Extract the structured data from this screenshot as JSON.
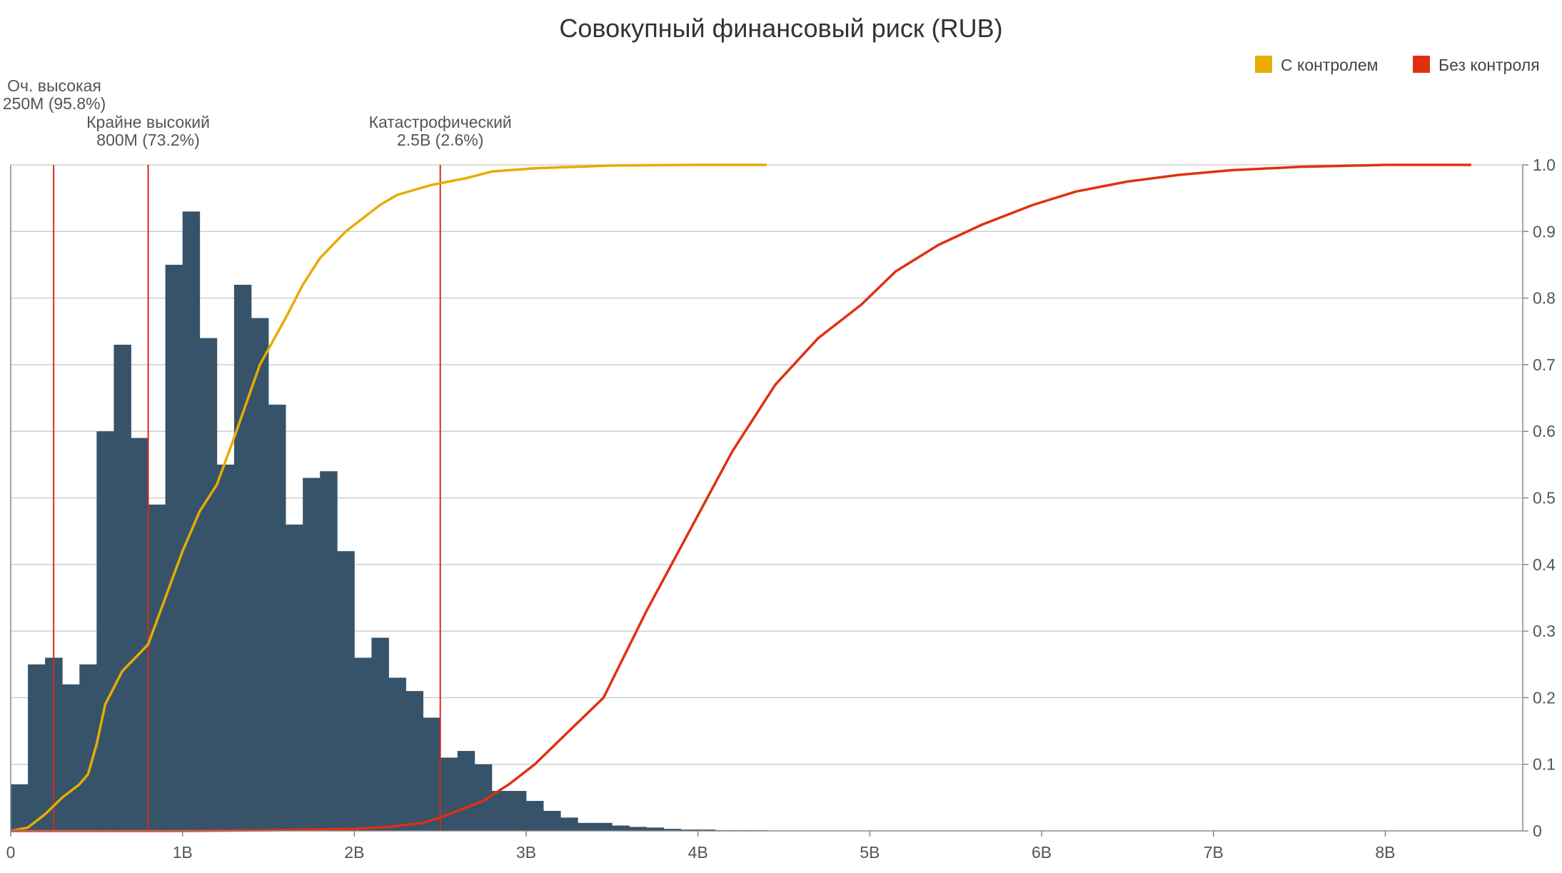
{
  "chart_data": {
    "type": "bar",
    "title": "Совокупный финансовый риск (RUB)",
    "xlabel": "",
    "ylabel": "",
    "grid": true,
    "legend_position": "top-right",
    "x_range": [
      0,
      8800000000
    ],
    "y2_range": [
      0,
      1.0
    ],
    "x_ticks": [
      {
        "value": 0,
        "label": "0"
      },
      {
        "value": 1000000000,
        "label": "1B"
      },
      {
        "value": 2000000000,
        "label": "2B"
      },
      {
        "value": 3000000000,
        "label": "3B"
      },
      {
        "value": 4000000000,
        "label": "4B"
      },
      {
        "value": 5000000000,
        "label": "5B"
      },
      {
        "value": 6000000000,
        "label": "6B"
      },
      {
        "value": 7000000000,
        "label": "7B"
      },
      {
        "value": 8000000000,
        "label": "8B"
      }
    ],
    "y_ticks": [
      {
        "value": 0,
        "label": "0"
      },
      {
        "value": 0.1,
        "label": "0.1"
      },
      {
        "value": 0.2,
        "label": "0.2"
      },
      {
        "value": 0.3,
        "label": "0.3"
      },
      {
        "value": 0.4,
        "label": "0.4"
      },
      {
        "value": 0.5,
        "label": "0.5"
      },
      {
        "value": 0.6,
        "label": "0.6"
      },
      {
        "value": 0.7,
        "label": "0.7"
      },
      {
        "value": 0.8,
        "label": "0.8"
      },
      {
        "value": 0.9,
        "label": "0.9"
      },
      {
        "value": 1.0,
        "label": "1.0"
      }
    ],
    "histogram": {
      "color": "#37536a",
      "bin_start": 0,
      "bin_width": 100000000,
      "values": [
        0.07,
        0.25,
        0.26,
        0.22,
        0.25,
        0.6,
        0.73,
        0.59,
        0.49,
        0.85,
        0.93,
        0.74,
        0.55,
        0.82,
        0.77,
        0.64,
        0.46,
        0.53,
        0.54,
        0.42,
        0.26,
        0.29,
        0.23,
        0.21,
        0.17,
        0.11,
        0.12,
        0.1,
        0.06,
        0.06,
        0.045,
        0.03,
        0.02,
        0.012,
        0.012,
        0.008,
        0.006,
        0.005,
        0.003,
        0.002,
        0.002,
        0.001,
        0.001,
        0.001
      ]
    },
    "series": [
      {
        "name": "С контролем",
        "color": "#e6ac00",
        "x": [
          0,
          100000000,
          200000000,
          300000000,
          400000000,
          450000000,
          500000000,
          550000000,
          650000000,
          800000000,
          900000000,
          1000000000,
          1100000000,
          1200000000,
          1300000000,
          1450000000,
          1600000000,
          1700000000,
          1800000000,
          1950000000,
          2050000000,
          2150000000,
          2250000000,
          2450000000,
          2650000000,
          2800000000,
          3050000000,
          3500000000,
          4000000000,
          4400000000
        ],
        "y": [
          0,
          0.005,
          0.025,
          0.05,
          0.07,
          0.085,
          0.13,
          0.19,
          0.24,
          0.28,
          0.35,
          0.42,
          0.48,
          0.52,
          0.59,
          0.7,
          0.77,
          0.82,
          0.86,
          0.9,
          0.92,
          0.94,
          0.955,
          0.97,
          0.98,
          0.99,
          0.995,
          0.999,
          1.0,
          1.0
        ]
      },
      {
        "name": "Без контроля",
        "color": "#e03010",
        "x": [
          0,
          1000000000,
          1500000000,
          2000000000,
          2200000000,
          2400000000,
          2500000000,
          2600000000,
          2750000000,
          2900000000,
          3050000000,
          3250000000,
          3450000000,
          3700000000,
          3950000000,
          4200000000,
          4450000000,
          4700000000,
          4950000000,
          5150000000,
          5400000000,
          5650000000,
          5950000000,
          6200000000,
          6500000000,
          6800000000,
          7100000000,
          7500000000,
          8000000000,
          8500000000
        ],
        "y": [
          0,
          0.0,
          0.001,
          0.003,
          0.006,
          0.012,
          0.02,
          0.03,
          0.045,
          0.07,
          0.1,
          0.15,
          0.2,
          0.33,
          0.45,
          0.57,
          0.67,
          0.74,
          0.79,
          0.84,
          0.88,
          0.91,
          0.94,
          0.96,
          0.975,
          0.985,
          0.992,
          0.997,
          1.0,
          1.0
        ]
      }
    ],
    "thresholds": [
      {
        "x": 250000000,
        "label": "Оч. высокая",
        "sublabel": "250M (95.8%)",
        "level": 0
      },
      {
        "x": 800000000,
        "label": "Крайне высокий",
        "sublabel": "800M (73.2%)",
        "level": 1
      },
      {
        "x": 2500000000,
        "label": "Катастрофический",
        "sublabel": "2.5B (2.6%)",
        "level": 1
      }
    ],
    "threshold_color": "#d42a1e"
  }
}
